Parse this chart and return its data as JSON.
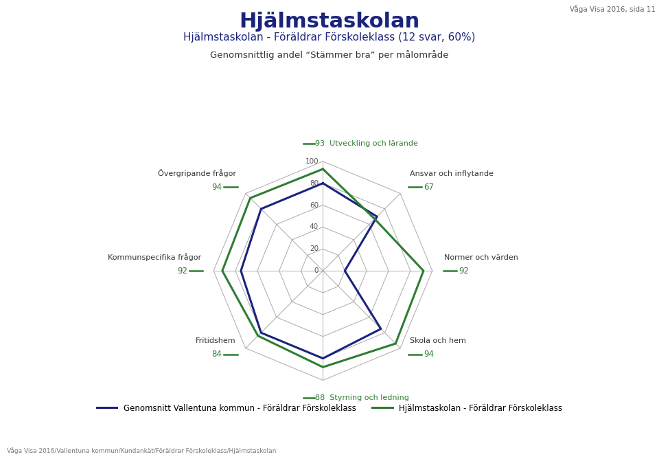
{
  "title": "Hjälmstaskolan",
  "subtitle": "Hjälmstaskolan - Föräldrar Förskoleklass (12 svar, 60%)",
  "subtitle2": "Genomsnittlig andel “Stämmer bra” per målområde",
  "top_right_text": "Våga Visa 2016, sida 11",
  "categories": [
    "Utveckling och lärande",
    "Ansvar och inflytande",
    "Normer och värden",
    "Skola och hem",
    "Styrning och ledning",
    "Fritidshem",
    "Kommunspecifika frågor",
    "Övergripande frågor"
  ],
  "series_green_label": "Hjälmstaskolan - Föräldrar Förskoleklass",
  "series_blue_label": "Genomsnitt Vallentuna kommun - Föräldrar Förskoleklass",
  "green_values": [
    93,
    67,
    92,
    94,
    88,
    84,
    92,
    94
  ],
  "blue_values": [
    80,
    70,
    20,
    75,
    80,
    80,
    75,
    80
  ],
  "green_color": "#2e7d32",
  "blue_color": "#1a237e",
  "r_max": 100,
  "r_ticks": [
    0,
    20,
    40,
    60,
    80,
    100
  ],
  "grid_color": "#aaaaaa",
  "bg_color": "#ffffff",
  "footer_text": "Våga Visa 2016/Vallentuna kommun/Kundankät/Föräldrar Förskoleklass/Hjälmstaskolan",
  "cat_label_color": "#333333",
  "val_label_color": "#2e7d32",
  "title_color": "#1a237e",
  "subtitle_color": "#1a237e",
  "subtitle2_color": "#333333"
}
